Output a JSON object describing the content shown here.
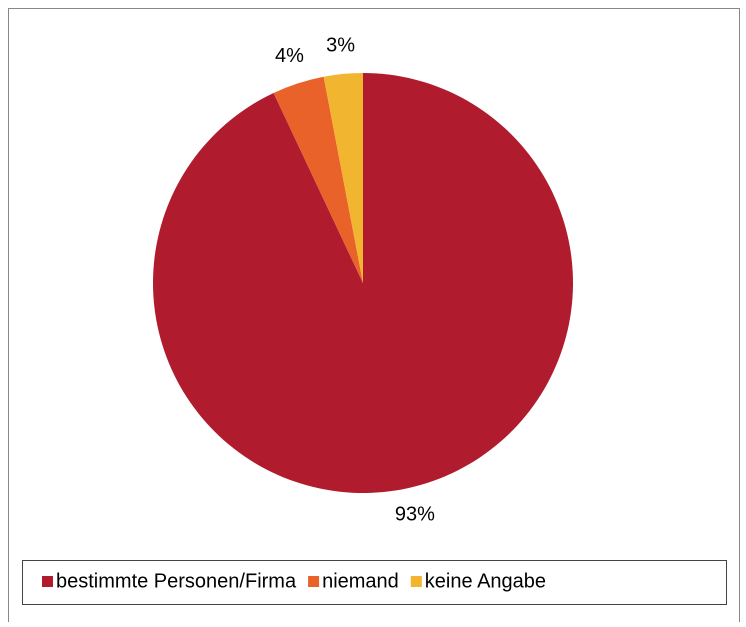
{
  "chart_data": {
    "type": "pie",
    "categories": [
      "bestimmte Personen/Firma",
      "niemand",
      "keine Angabe"
    ],
    "values": [
      93,
      4,
      3
    ],
    "value_labels": [
      "93%",
      "4%",
      "3%"
    ],
    "colors": [
      "#b01c2e",
      "#e8622a",
      "#f2b530"
    ],
    "legend": "bottom"
  }
}
